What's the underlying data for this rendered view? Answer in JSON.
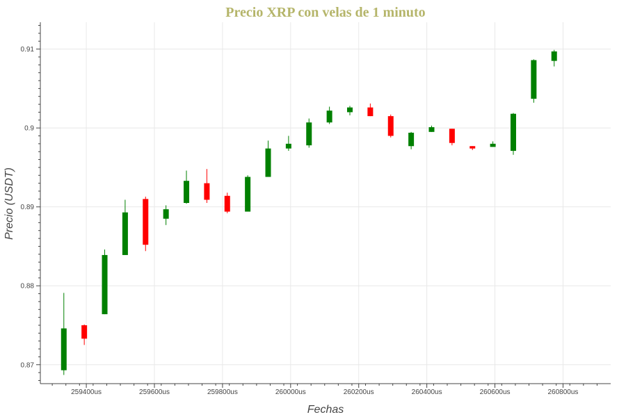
{
  "chart_data": {
    "type": "candlestick",
    "title": "Precio XRP con velas de 1 minuto",
    "xlabel": "Fechas",
    "ylabel": "Precio (USDT)",
    "xlim": [
      259265,
      260940
    ],
    "ylim": [
      0.8676,
      0.9134
    ],
    "x_ticks": [
      {
        "value": 259400,
        "label": "259400us"
      },
      {
        "value": 259600,
        "label": "259600us"
      },
      {
        "value": 259800,
        "label": "259800us"
      },
      {
        "value": 260000,
        "label": "260000us"
      },
      {
        "value": 260200,
        "label": "260200us"
      },
      {
        "value": 260400,
        "label": "260400us"
      },
      {
        "value": 260600,
        "label": "260600us"
      },
      {
        "value": 260800,
        "label": "260800us"
      }
    ],
    "y_ticks": [
      {
        "value": 0.87,
        "label": "0.87"
      },
      {
        "value": 0.88,
        "label": "0.88"
      },
      {
        "value": 0.89,
        "label": "0.89"
      },
      {
        "value": 0.9,
        "label": "0.9"
      },
      {
        "value": 0.91,
        "label": "0.91"
      }
    ],
    "grid": true,
    "colors": {
      "up": "#008000",
      "down": "#ff0000",
      "title": "#b5b56a",
      "axis": "#444444",
      "grid": "#e8e8e8"
    },
    "candles": [
      {
        "x": 259334,
        "open": 0.8693,
        "close": 0.8746,
        "high": 0.8791,
        "low": 0.8687
      },
      {
        "x": 259394,
        "open": 0.875,
        "close": 0.8733,
        "high": 0.8751,
        "low": 0.8725
      },
      {
        "x": 259454,
        "open": 0.8764,
        "close": 0.8839,
        "high": 0.8846,
        "low": 0.8764
      },
      {
        "x": 259514,
        "open": 0.8839,
        "close": 0.8893,
        "high": 0.8909,
        "low": 0.8839
      },
      {
        "x": 259574,
        "open": 0.891,
        "close": 0.8852,
        "high": 0.8913,
        "low": 0.8844
      },
      {
        "x": 259634,
        "open": 0.8885,
        "close": 0.8897,
        "high": 0.8902,
        "low": 0.8877
      },
      {
        "x": 259694,
        "open": 0.8905,
        "close": 0.8933,
        "high": 0.8946,
        "low": 0.8904
      },
      {
        "x": 259754,
        "open": 0.893,
        "close": 0.8909,
        "high": 0.8948,
        "low": 0.8905
      },
      {
        "x": 259814,
        "open": 0.8914,
        "close": 0.8894,
        "high": 0.8918,
        "low": 0.8892
      },
      {
        "x": 259874,
        "open": 0.8894,
        "close": 0.8938,
        "high": 0.894,
        "low": 0.8894
      },
      {
        "x": 259934,
        "open": 0.8938,
        "close": 0.8974,
        "high": 0.8984,
        "low": 0.8938
      },
      {
        "x": 259994,
        "open": 0.8974,
        "close": 0.898,
        "high": 0.899,
        "low": 0.8971
      },
      {
        "x": 260054,
        "open": 0.8978,
        "close": 0.9007,
        "high": 0.9012,
        "low": 0.8975
      },
      {
        "x": 260114,
        "open": 0.9007,
        "close": 0.9022,
        "high": 0.9027,
        "low": 0.9005
      },
      {
        "x": 260174,
        "open": 0.902,
        "close": 0.9026,
        "high": 0.9028,
        "low": 0.9016
      },
      {
        "x": 260234,
        "open": 0.9026,
        "close": 0.9015,
        "high": 0.9031,
        "low": 0.9015
      },
      {
        "x": 260294,
        "open": 0.9015,
        "close": 0.899,
        "high": 0.9017,
        "low": 0.8988
      },
      {
        "x": 260354,
        "open": 0.8977,
        "close": 0.8994,
        "high": 0.8995,
        "low": 0.8973
      },
      {
        "x": 260414,
        "open": 0.8995,
        "close": 0.9001,
        "high": 0.9003,
        "low": 0.8995
      },
      {
        "x": 260474,
        "open": 0.8999,
        "close": 0.8981,
        "high": 0.8999,
        "low": 0.8978
      },
      {
        "x": 260534,
        "open": 0.8977,
        "close": 0.8974,
        "high": 0.8977,
        "low": 0.8972
      },
      {
        "x": 260594,
        "open": 0.8976,
        "close": 0.898,
        "high": 0.8983,
        "low": 0.8976
      },
      {
        "x": 260654,
        "open": 0.8971,
        "close": 0.9018,
        "high": 0.9019,
        "low": 0.8966
      },
      {
        "x": 260714,
        "open": 0.9037,
        "close": 0.9086,
        "high": 0.9087,
        "low": 0.9032
      },
      {
        "x": 260774,
        "open": 0.9085,
        "close": 0.9097,
        "high": 0.9099,
        "low": 0.9078
      }
    ],
    "down_candles_index": [
      1,
      4,
      7,
      8,
      15,
      16,
      19,
      20
    ]
  }
}
